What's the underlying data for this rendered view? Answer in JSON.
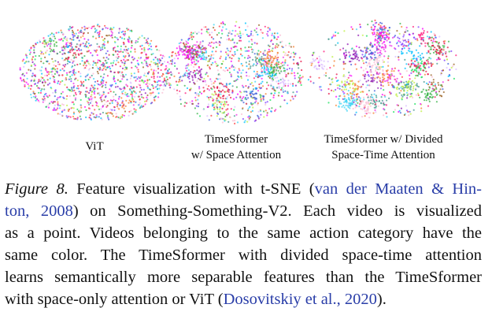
{
  "figure": {
    "panels": [
      {
        "label": [
          "ViT"
        ]
      },
      {
        "label": [
          "TimeSformer",
          "w/ Space Attention"
        ]
      },
      {
        "label": [
          "TimeSformer w/ Divided",
          "Space-Time Attention"
        ]
      }
    ]
  },
  "caption": {
    "lines": [
      [
        "Figure 8.",
        " Feature visualization with t-SNE (",
        "van der Maaten & Hin-"
      ],
      [
        "ton, 2008",
        ") on Something-Something-V2. Each video is visualized"
      ],
      [
        "as a point. Videos belonging to the same action category have the"
      ],
      [
        "same color. The TimeSformer with divided space-time attention"
      ],
      [
        "learns semantically more separable features than the TimeSformer"
      ],
      [
        "with space-only attention or ViT (",
        "Dosovitskiy et al., 2020",
        ")."
      ]
    ]
  }
}
